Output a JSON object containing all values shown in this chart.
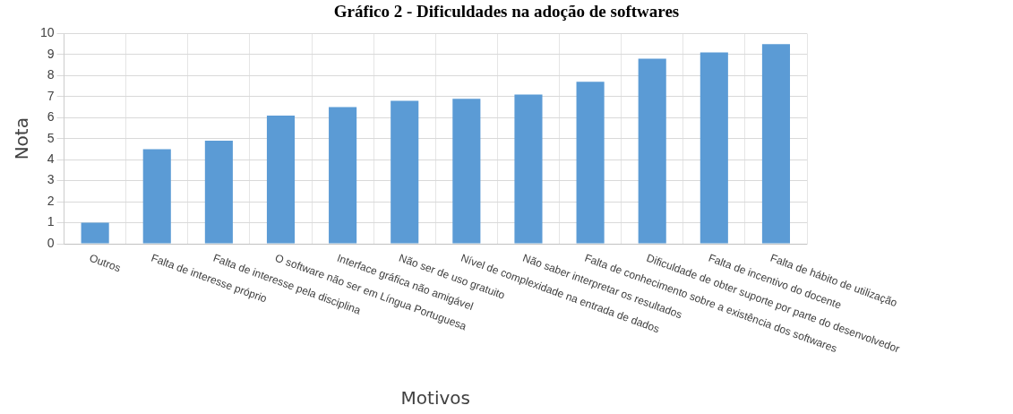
{
  "chart_data": {
    "type": "bar",
    "title": "Gráfico 2 - Dificuldades na adoção de softwares",
    "xlabel": "Motivos",
    "ylabel": "Nota",
    "categories": [
      "Outros",
      "Falta de interesse próprio",
      "Falta de interesse pela disciplina",
      "O software não ser em Língua Portuguesa",
      "Interface gráfica não amigável",
      "Não ser de uso gratuito",
      "Nível de complexidade na entrada de dados",
      "Não saber interpretar os resultados",
      "Falta de conhecimento sobre a existência dos softwares",
      "Dificuldade de obter suporte por parte do desenvolvedor",
      "Falta de incentivo do docente",
      "Falta de hábito de utilização"
    ],
    "values": [
      1.0,
      4.5,
      4.9,
      6.1,
      6.5,
      6.8,
      6.9,
      7.1,
      7.7,
      8.8,
      9.1,
      9.5
    ],
    "color": "#5b9bd5",
    "ylim": [
      0,
      10
    ],
    "yticks": [
      0,
      1,
      2,
      3,
      4,
      5,
      6,
      7,
      8,
      9,
      10
    ],
    "grid": true
  }
}
